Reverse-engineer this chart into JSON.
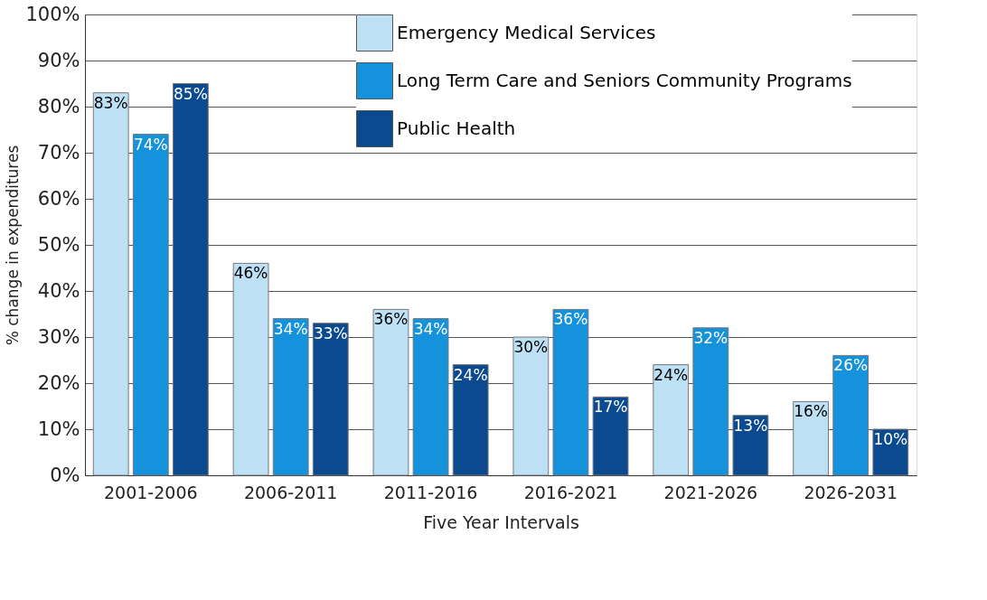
{
  "chart_data": {
    "type": "bar",
    "xlabel": "Five Year Intervals",
    "ylabel": "% change in expenditures",
    "categories": [
      "2001-2006",
      "2006-2011",
      "2011-2016",
      "2016-2021",
      "2021-2026",
      "2026-2031"
    ],
    "series": [
      {
        "name": "Emergency Medical Services",
        "color": "#bde0f5",
        "values": [
          83,
          46,
          36,
          30,
          24,
          16
        ],
        "value_labels": [
          "83%",
          "46%",
          "36%",
          "30%",
          "24%",
          "16%"
        ]
      },
      {
        "name": "Long Term Care and Seniors Community Programs",
        "color": "#1592dc",
        "values": [
          74,
          34,
          34,
          36,
          32,
          26
        ],
        "value_labels": [
          "74%",
          "34%",
          "34%",
          "36%",
          "32%",
          "26%"
        ]
      },
      {
        "name": "Public Health",
        "color": "#0b4a8f",
        "values": [
          85,
          33,
          24,
          17,
          13,
          10
        ],
        "value_labels": [
          "85%",
          "33%",
          "24%",
          "17%",
          "13%",
          "10%"
        ]
      }
    ],
    "ylim": [
      0,
      100
    ],
    "yticks": [
      {
        "value": 0,
        "label": "0%"
      },
      {
        "value": 10,
        "label": "10%"
      },
      {
        "value": 20,
        "label": "20%"
      },
      {
        "value": 30,
        "label": "30%"
      },
      {
        "value": 40,
        "label": "40%"
      },
      {
        "value": 50,
        "label": "50%"
      },
      {
        "value": 60,
        "label": "60%"
      },
      {
        "value": 70,
        "label": "70%"
      },
      {
        "value": 80,
        "label": "80%"
      },
      {
        "value": 90,
        "label": "90%"
      },
      {
        "value": 100,
        "label": "100%"
      }
    ],
    "grid": "y",
    "legend": "top"
  }
}
